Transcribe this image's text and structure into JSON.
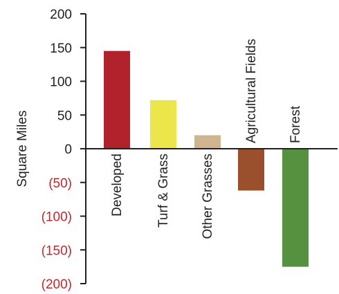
{
  "chart_data": {
    "type": "bar",
    "title": "",
    "xlabel": "",
    "ylabel": "Square Miles",
    "ylim": [
      -200,
      200
    ],
    "yticks": [
      200,
      150,
      100,
      50,
      0,
      -50,
      -100,
      -150,
      -200
    ],
    "ytick_labels": [
      "200",
      "150",
      "100",
      "50",
      "0",
      "(50)",
      "(100)",
      "(150)",
      "(200)"
    ],
    "categories": [
      "Developed",
      "Turf & Grass",
      "Other Grasses",
      "Agricultural Fields",
      "Forest"
    ],
    "values": [
      145,
      72,
      20,
      -62,
      -175
    ],
    "colors": [
      "#b1222c",
      "#ece64a",
      "#cfb48d",
      "#9a502c",
      "#55913e"
    ],
    "grid": false,
    "legend": "none",
    "positive_tick_color": "#231f20",
    "negative_tick_color": "#c0282d"
  }
}
